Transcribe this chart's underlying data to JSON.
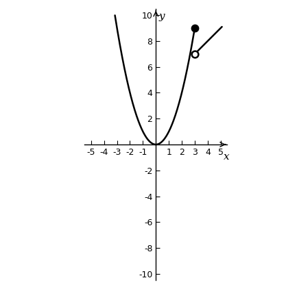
{
  "xlim": [
    -5.5,
    5.5
  ],
  "ylim": [
    -10.5,
    10.5
  ],
  "xticks": [
    -5,
    -4,
    -3,
    -2,
    -1,
    1,
    2,
    3,
    4,
    5
  ],
  "yticks": [
    -10,
    -8,
    -6,
    -4,
    -2,
    2,
    4,
    6,
    8,
    10
  ],
  "xlabel": "x",
  "ylabel": "y",
  "parabola_x_start": -3.16,
  "parabola_x_end": 3.0,
  "line_x_start": 3.0,
  "line_x_end": 5.1,
  "closed_circle": [
    3,
    9
  ],
  "open_circle": [
    3,
    7
  ],
  "curve_color": "#000000",
  "background_color": "#ffffff",
  "circle_size": 7,
  "linewidth": 1.8
}
